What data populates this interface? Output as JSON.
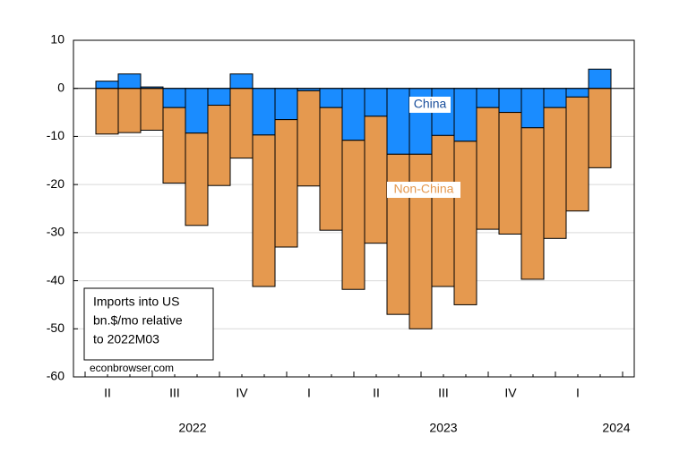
{
  "chart_data": {
    "type": "stacked_bar",
    "categories": [
      null,
      null,
      null,
      null,
      null,
      null,
      null,
      null,
      null,
      null,
      null,
      null,
      null,
      null,
      null,
      null,
      null,
      null,
      null,
      null,
      null,
      null,
      null
    ],
    "x_quarter_labels": [
      "II",
      "III",
      "IV",
      "I",
      "II",
      "III",
      "IV",
      "I"
    ],
    "x_year_labels": [
      "2022",
      "2023",
      "2024"
    ],
    "series": [
      {
        "name": "China",
        "color": "#1a8cff",
        "values": [
          1.5,
          3,
          0.3,
          -4,
          -9.3,
          -3.5,
          3,
          -9.7,
          -6.5,
          -0.5,
          -4,
          -10.8,
          -5.8,
          -13.7,
          -13.7,
          -9.8,
          -11,
          -4,
          -5,
          -8.2,
          -4,
          -1.8,
          4
        ]
      },
      {
        "name": "Non-China",
        "color": "#e5994f",
        "values": [
          -9.5,
          -9.2,
          -8.7,
          -15.7,
          -19.2,
          -16.7,
          -14.5,
          -31.5,
          -26.5,
          -19.8,
          -25.5,
          -31,
          -26.4,
          -33.3,
          -36.3,
          -31.4,
          -34,
          -25.3,
          -25.3,
          -31.5,
          -27.2,
          -23.7,
          -16.5
        ]
      }
    ],
    "ylim": [
      -60,
      10
    ],
    "yticks": [
      10,
      0,
      -10,
      -20,
      -30,
      -40,
      -50,
      -60
    ],
    "grid": true,
    "annotation": [
      "Imports into US",
      "bn.$/mo relative",
      "to 2022M03"
    ],
    "source": "econbrowser.com"
  }
}
